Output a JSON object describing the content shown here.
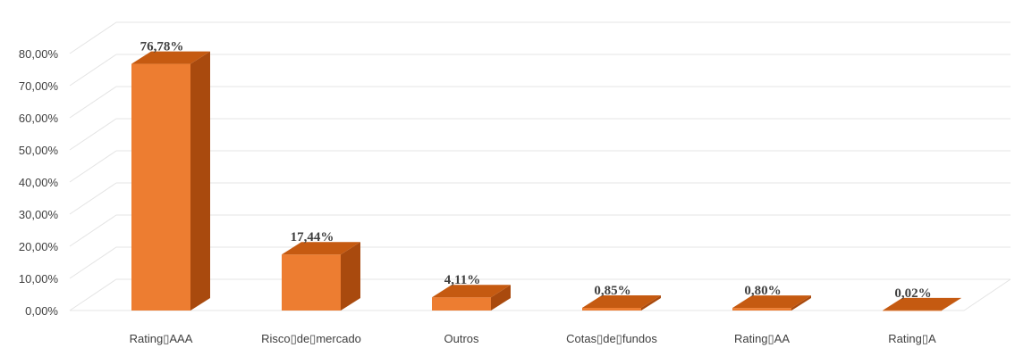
{
  "chart_data": {
    "type": "bar",
    "style": "3d-column",
    "categories": [
      "Rating▯AAA",
      "Risco▯de▯mercado",
      "Outros",
      "Cotas▯de▯fundos",
      "Rating▯AA",
      "Rating▯A"
    ],
    "values": [
      76.78,
      17.44,
      4.11,
      0.85,
      0.8,
      0.02
    ],
    "data_labels": [
      "76,78%",
      "17,44%",
      "4,11%",
      "0,85%",
      "0,80%",
      "0,02%"
    ],
    "yticks": [
      "0,00%",
      "10,00%",
      "20,00%",
      "30,00%",
      "40,00%",
      "50,00%",
      "60,00%",
      "70,00%",
      "80,00%"
    ],
    "ylim": [
      0,
      90
    ],
    "grid": true,
    "legend": "none",
    "colors": {
      "front": "#ED7D31",
      "top": "#C55A11",
      "side": "#A94A0E",
      "grid": "#E4E4E4",
      "text": "#404040"
    }
  }
}
